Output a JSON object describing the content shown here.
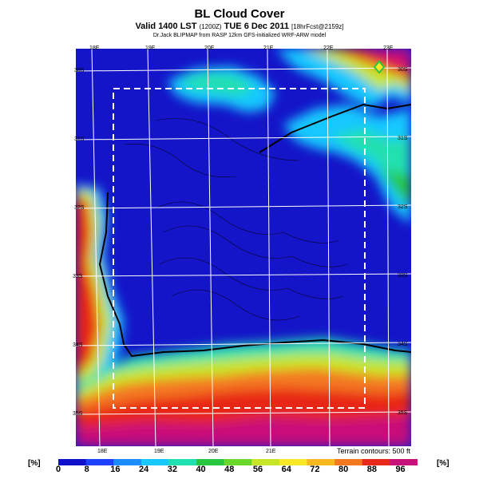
{
  "title": "BL Cloud Cover",
  "subtitle_main": "Valid 1400 LST",
  "subtitle_code": "(1200Z)",
  "subtitle_date": "TUE 6 Dec 2011",
  "subtitle_fcst": "[18hrFcst@2159z]",
  "credit": "Dr.Jack BLIPMAP from RASP 12km GFS-initialized WRF-ARW model",
  "terrain_note": "Terrain contours: 500 ft",
  "colorbar": {
    "unit_left": "[%]",
    "unit_right": "[%]",
    "ticks": [
      "0",
      "8",
      "16",
      "24",
      "32",
      "40",
      "48",
      "56",
      "64",
      "72",
      "80",
      "88",
      "96"
    ],
    "colors": [
      "#1010c8",
      "#1e40ff",
      "#1c8cff",
      "#19c8ff",
      "#20e0b0",
      "#27c840",
      "#6ad82a",
      "#c8e628",
      "#f8e828",
      "#f8b820",
      "#f47820",
      "#e82818",
      "#c8107a"
    ]
  },
  "lon_labels_top": [
    "18E",
    "19E",
    "20E",
    "21E",
    "22E",
    "23E"
  ],
  "lon_labels_bottom": [
    "18E",
    "19E",
    "20E",
    "21E"
  ],
  "lat_labels_left": [
    "30S",
    "31S",
    "32S",
    "33S",
    "34S",
    "35S"
  ],
  "lat_labels_right": [
    "30S",
    "31S",
    "32S",
    "33S",
    "34S",
    "35S"
  ],
  "colors": {
    "clear_sky": "#1010c8",
    "mid_cover": "#27c840",
    "high_cover": "#e82818",
    "coastline": "#000000",
    "grid": "#ffffff"
  }
}
